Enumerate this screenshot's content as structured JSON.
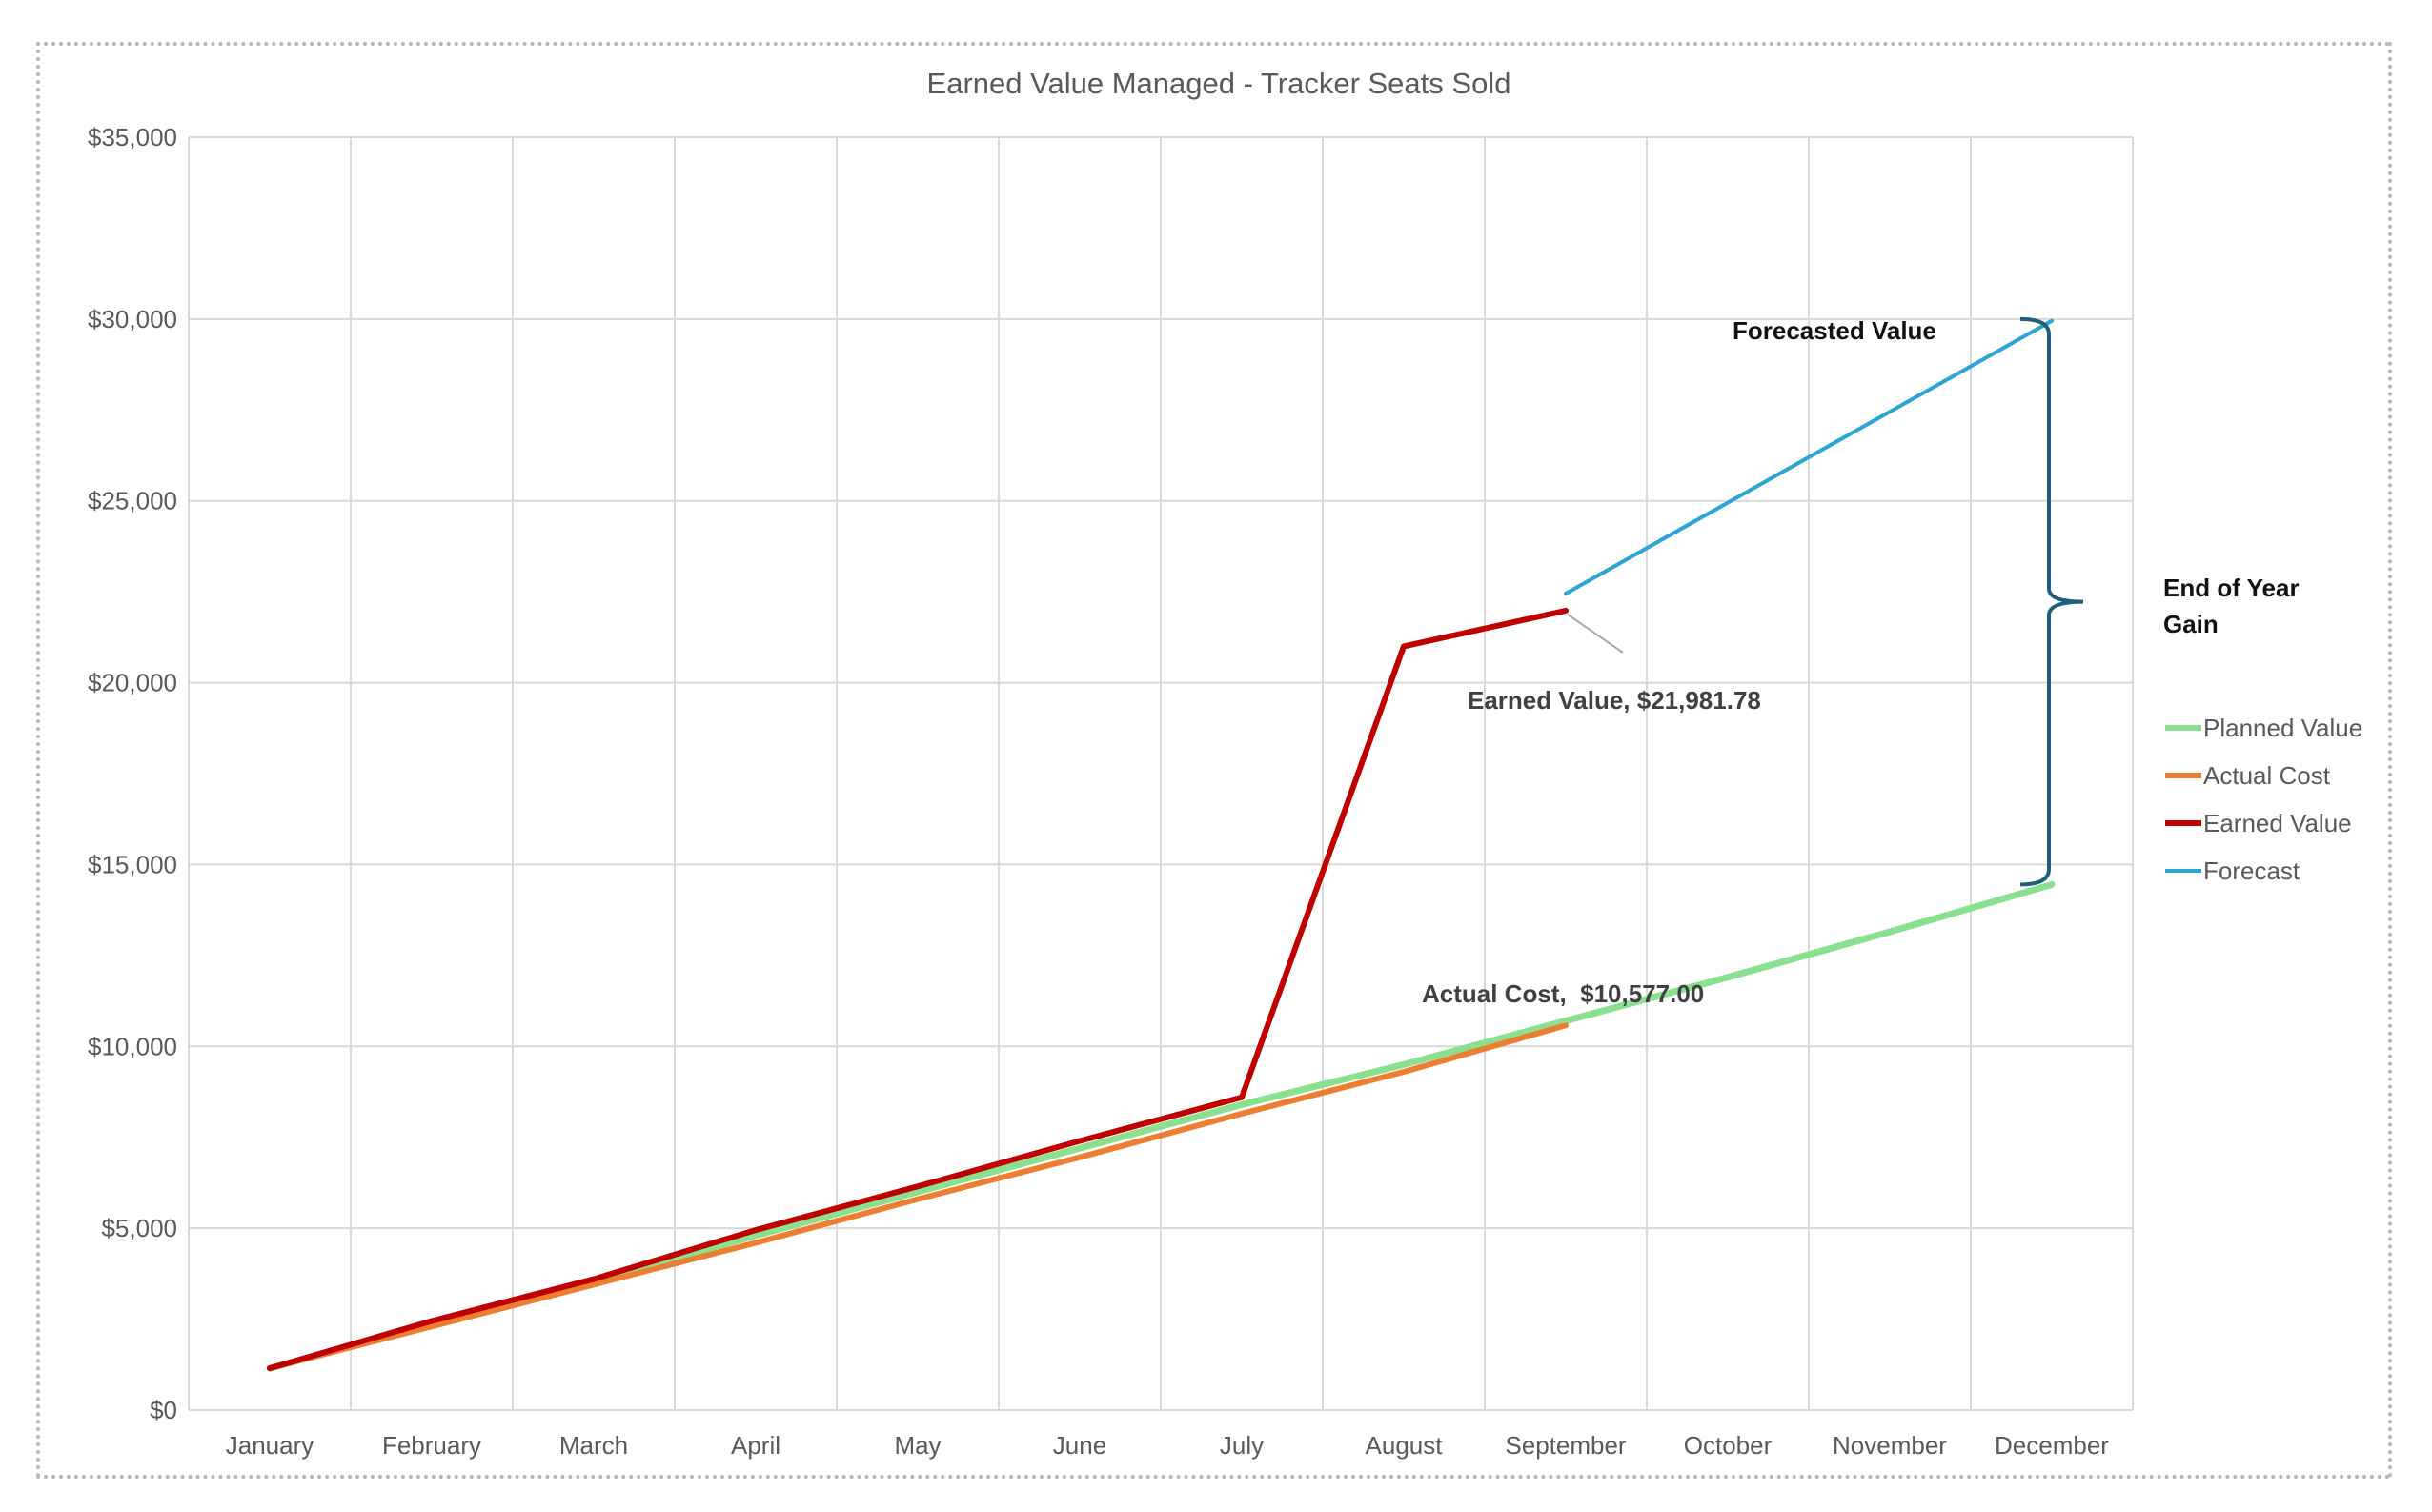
{
  "chart_data": {
    "type": "line",
    "title": "Earned Value Managed - Tracker Seats Sold",
    "xlabel": "",
    "ylabel": "",
    "categories": [
      "January",
      "February",
      "March",
      "April",
      "May",
      "June",
      "July",
      "August",
      "September",
      "October",
      "November",
      "December"
    ],
    "ylim": [
      0,
      35000
    ],
    "yticks": [
      0,
      5000,
      10000,
      15000,
      20000,
      25000,
      30000,
      35000
    ],
    "ytick_labels": [
      "$0",
      "$5,000",
      "$10,000",
      "$15,000",
      "$20,000",
      "$25,000",
      "$30,000",
      "$35,000"
    ],
    "grid": true,
    "legend_position": "right",
    "series": [
      {
        "name": "Planned Value",
        "color": "#8ae08e",
        "values": [
          1150,
          2350,
          3550,
          4800,
          6000,
          7200,
          8400,
          9500,
          10700,
          11900,
          13150,
          14450
        ]
      },
      {
        "name": "Actual Cost",
        "color": "#ed7d31",
        "values": [
          1150,
          2300,
          3450,
          4600,
          5800,
          6950,
          8150,
          9300,
          10577.0,
          null,
          null,
          null
        ]
      },
      {
        "name": "Earned Value",
        "color": "#c00000",
        "values": [
          1150,
          2450,
          3600,
          4950,
          6150,
          7400,
          8600,
          21000,
          21981.78,
          null,
          null,
          null
        ]
      },
      {
        "name": "Forecast",
        "color": "#2aa5d4",
        "values": [
          null,
          null,
          null,
          null,
          null,
          null,
          null,
          null,
          22450,
          24950,
          27450,
          29950
        ]
      }
    ],
    "annotations": [
      {
        "text": "Earned Value, $21,981.78",
        "series": "Earned Value",
        "category": "September",
        "value": 21981.78
      },
      {
        "text": "Actual Cost,  $10,577.00",
        "series": "Actual Cost",
        "category": "September",
        "value": 10577.0
      },
      {
        "text": "Forecasted Value"
      },
      {
        "text_lines": [
          "End of Year",
          "Gain"
        ]
      }
    ],
    "bracket": {
      "from_value": 30000,
      "to_value": 14450,
      "color": "#1f5f7a"
    }
  }
}
